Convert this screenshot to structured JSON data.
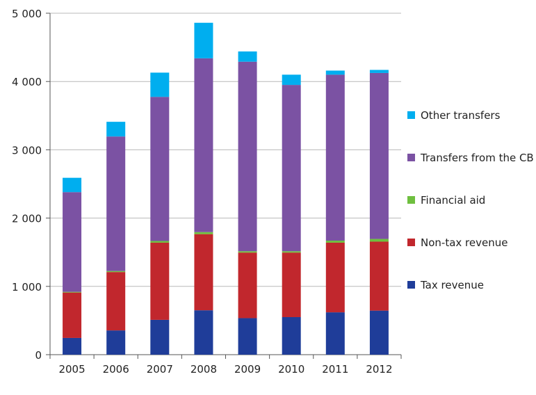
{
  "chart_data": {
    "type": "bar",
    "stacked": true,
    "title": "",
    "xlabel": "",
    "ylabel": "",
    "ylim": [
      0,
      5000
    ],
    "yticks": [
      0,
      1000,
      2000,
      3000,
      4000,
      5000
    ],
    "ytick_labels": [
      "0",
      "1 000",
      "2 000",
      "3 000",
      "4 000",
      "5 000"
    ],
    "grid": true,
    "legend_position": "right",
    "categories": [
      "2005",
      "2006",
      "2007",
      "2008",
      "2009",
      "2010",
      "2011",
      "2012"
    ],
    "series": [
      {
        "name": "Tax revenue",
        "color": "#1f3d99",
        "values": [
          245,
          355,
          510,
          650,
          535,
          550,
          620,
          645
        ]
      },
      {
        "name": "Non-tax revenue",
        "color": "#c1272d",
        "values": [
          665,
          855,
          1130,
          1115,
          960,
          945,
          1020,
          1010
        ]
      },
      {
        "name": "Financial aid",
        "color": "#6fbf3f",
        "values": [
          10,
          15,
          25,
          30,
          20,
          20,
          30,
          40
        ]
      },
      {
        "name": "Transfers from the CB",
        "color": "#7b52a3",
        "values": [
          1460,
          1970,
          2110,
          2545,
          2775,
          2435,
          2430,
          2430
        ]
      },
      {
        "name": "Other transfers",
        "color": "#00aeef",
        "values": [
          210,
          215,
          355,
          520,
          150,
          150,
          60,
          45
        ]
      }
    ]
  }
}
